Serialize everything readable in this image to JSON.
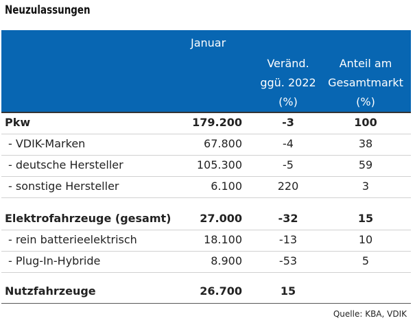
{
  "title": "Neuzulassungen",
  "header": {
    "col_januar": "Januar",
    "col_change": [
      "Veränd.",
      "ggü. 2022",
      "(%)"
    ],
    "col_share": [
      "Anteil am",
      "Gesamtmarkt",
      "(%)"
    ]
  },
  "rows": [
    {
      "label": "Pkw",
      "value": "179.200",
      "change": "-3",
      "share": "100",
      "bold": true
    },
    {
      "label": "- VDIK-Marken",
      "value": "67.800",
      "change": "-4",
      "share": "38",
      "bold": false
    },
    {
      "label": "- deutsche Hersteller",
      "value": "105.300",
      "change": "-5",
      "share": "59",
      "bold": false
    },
    {
      "label": "- sonstige Hersteller",
      "value": "6.100",
      "change": "220",
      "share": "3",
      "bold": false
    },
    {
      "label": "Elektrofahrzeuge (gesamt)",
      "value": "27.000",
      "change": "-32",
      "share": "15",
      "bold": true
    },
    {
      "label": "- rein batterieelektrisch",
      "value": "18.100",
      "change": "-13",
      "share": "10",
      "bold": false
    },
    {
      "label": "- Plug-In-Hybride",
      "value": "8.900",
      "change": "-53",
      "share": "5",
      "bold": false
    },
    {
      "label": "Nutzfahrzeuge",
      "value": "26.700",
      "change": "15",
      "share": "",
      "bold": true
    }
  ],
  "source": "Quelle: KBA, VDIK",
  "colors": {
    "header_bg": "#0866b2",
    "header_text": "#ffffff"
  }
}
